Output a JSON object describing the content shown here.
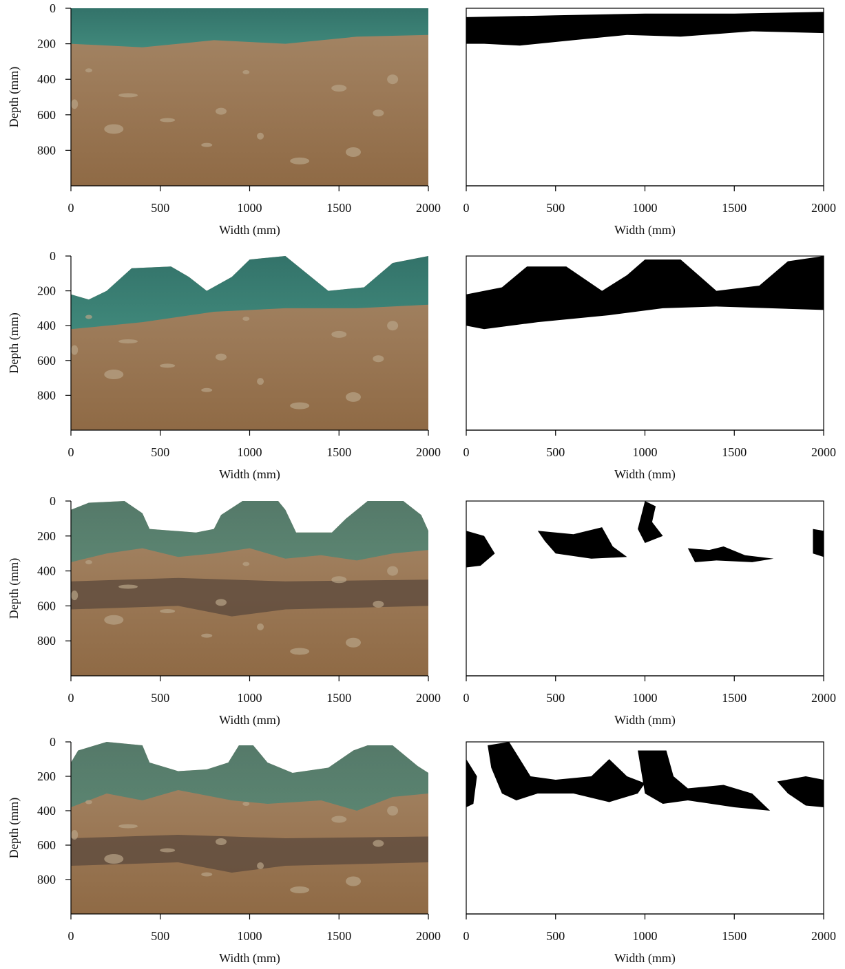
{
  "chart_data": [
    {
      "type": "photo",
      "xlabel": "Width (mm)",
      "ylabel": "Depth (mm)",
      "xlim": [
        0,
        2000
      ],
      "ylim": [
        1000,
        0
      ],
      "xticks": [
        0,
        500,
        1000,
        1500,
        2000
      ],
      "yticks": [
        0,
        200,
        400,
        600,
        800
      ]
    },
    {
      "type": "mask",
      "xlabel": "Width (mm)",
      "xlim": [
        0,
        2000
      ],
      "xticks": [
        0,
        500,
        1000,
        1500,
        2000
      ]
    },
    {
      "type": "photo",
      "xlabel": "Width (mm)",
      "ylabel": "Depth (mm)",
      "xlim": [
        0,
        2000
      ],
      "ylim": [
        1000,
        0
      ],
      "xticks": [
        0,
        500,
        1000,
        1500,
        2000
      ],
      "yticks": [
        0,
        200,
        400,
        600,
        800
      ]
    },
    {
      "type": "mask",
      "xlabel": "Width (mm)",
      "xlim": [
        0,
        2000
      ],
      "xticks": [
        0,
        500,
        1000,
        1500,
        2000
      ]
    },
    {
      "type": "photo",
      "xlabel": "Width (mm)",
      "ylabel": "Depth (mm)",
      "xlim": [
        0,
        2000
      ],
      "ylim": [
        1000,
        0
      ],
      "xticks": [
        0,
        500,
        1000,
        1500,
        2000
      ],
      "yticks": [
        0,
        200,
        400,
        600,
        800
      ]
    },
    {
      "type": "mask",
      "xlabel": "Width (mm)",
      "xlim": [
        0,
        2000
      ],
      "xticks": [
        0,
        500,
        1000,
        1500,
        2000
      ]
    },
    {
      "type": "photo",
      "xlabel": "Width (mm)",
      "ylabel": "Depth (mm)",
      "xlim": [
        0,
        2000
      ],
      "ylim": [
        1000,
        0
      ],
      "xticks": [
        0,
        500,
        1000,
        1500,
        2000
      ],
      "yticks": [
        0,
        200,
        400,
        600,
        800
      ]
    },
    {
      "type": "mask",
      "xlabel": "Width (mm)",
      "xlim": [
        0,
        2000
      ],
      "xticks": [
        0,
        500,
        1000,
        1500,
        2000
      ]
    }
  ]
}
